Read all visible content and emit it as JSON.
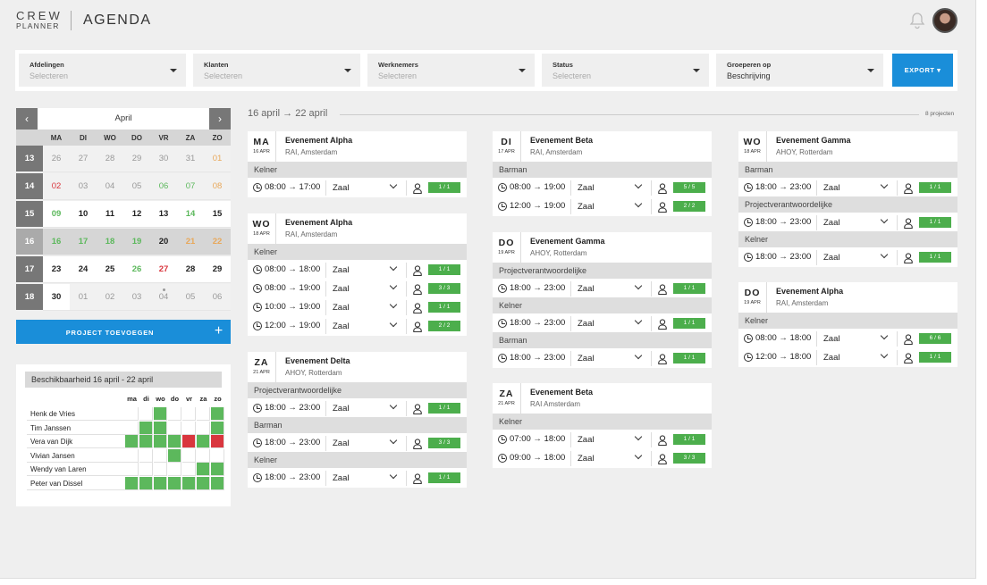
{
  "header": {
    "logo_top": "CREW",
    "logo_bottom": "PLANNER",
    "title": "AGENDA"
  },
  "filters": [
    {
      "label": "Afdelingen",
      "value": "Selecteren",
      "placeholder": true
    },
    {
      "label": "Klanten",
      "value": "Selecteren",
      "placeholder": true
    },
    {
      "label": "Werknemers",
      "value": "Selecteren",
      "placeholder": true
    },
    {
      "label": "Status",
      "value": "Selecteren",
      "placeholder": true
    },
    {
      "label": "Groeperen op",
      "value": "Beschrijving",
      "placeholder": false
    }
  ],
  "export_label": "EXPORT ▾",
  "calendar": {
    "month": "April",
    "prev": "‹",
    "next": "›",
    "weekdays": [
      "MA",
      "DI",
      "WO",
      "DO",
      "VR",
      "ZA",
      "ZO"
    ],
    "weeks": [
      {
        "num": "13",
        "days": [
          "26",
          "27",
          "28",
          "29",
          "30",
          "31",
          "01"
        ]
      },
      {
        "num": "14",
        "days": [
          "02",
          "03",
          "04",
          "05",
          "06",
          "07",
          "08"
        ]
      },
      {
        "num": "15",
        "days": [
          "09",
          "10",
          "11",
          "12",
          "13",
          "14",
          "15"
        ]
      },
      {
        "num": "16",
        "days": [
          "16",
          "17",
          "18",
          "19",
          "20",
          "21",
          "22"
        ]
      },
      {
        "num": "17",
        "days": [
          "23",
          "24",
          "25",
          "26",
          "27",
          "28",
          "29"
        ]
      },
      {
        "num": "18",
        "days": [
          "30",
          "01",
          "02",
          "03",
          "04",
          "05",
          "06"
        ]
      }
    ]
  },
  "add_project_label": "PROJECT TOEVOEGEN",
  "add_project_icon": "+",
  "availability": {
    "title": "Beschikbaarheid 16 april - 22 april",
    "days": [
      "ma",
      "di",
      "wo",
      "do",
      "vr",
      "za",
      "zo"
    ],
    "colors": {
      "green": "#5cb85c",
      "red": "#d9363e"
    },
    "people": [
      {
        "name": "Henk de Vries",
        "cells": [
          "",
          "",
          "g",
          "",
          "",
          "",
          "g"
        ]
      },
      {
        "name": "Tim Janssen",
        "cells": [
          "",
          "g",
          "g",
          "",
          "",
          "",
          "g"
        ]
      },
      {
        "name": "Vera van Dijk",
        "cells": [
          "g",
          "g",
          "g",
          "g",
          "r",
          "g",
          "r"
        ]
      },
      {
        "name": "Vivian Jansen",
        "cells": [
          "",
          "",
          "",
          "g",
          "",
          "",
          ""
        ]
      },
      {
        "name": "Wendy van Laren",
        "cells": [
          "",
          "",
          "",
          "",
          "",
          "g",
          "g"
        ]
      },
      {
        "name": "Peter van Dissel",
        "cells": [
          "g",
          "g",
          "g",
          "g",
          "g",
          "g",
          "g"
        ]
      }
    ]
  },
  "range": {
    "from": "16 april",
    "arrow": "→",
    "to": "22 april",
    "count": "8 projecten"
  },
  "cards": [
    {
      "day": "MA",
      "date": "16 APR",
      "name": "Evenement Alpha",
      "loc": "RAI, Amsterdam",
      "roles": [
        {
          "role": "Kelner",
          "shifts": [
            {
              "time": "08:00 → 17:00",
              "loc": "Zaal",
              "count": "1 / 1"
            }
          ]
        }
      ]
    },
    {
      "day": "WO",
      "date": "18 APR",
      "name": "Evenement Alpha",
      "loc": "RAI, Amsterdam",
      "roles": [
        {
          "role": "Kelner",
          "shifts": [
            {
              "time": "08:00 → 18:00",
              "loc": "Zaal",
              "count": "1 / 1"
            },
            {
              "time": "08:00 → 19:00",
              "loc": "Zaal",
              "count": "3 / 3"
            },
            {
              "time": "10:00 → 19:00",
              "loc": "Zaal",
              "count": "1 / 1"
            },
            {
              "time": "12:00 → 19:00",
              "loc": "Zaal",
              "count": "2 / 2"
            }
          ]
        }
      ]
    },
    {
      "day": "ZA",
      "date": "21 APR",
      "name": "Evenement Delta",
      "loc": "AHOY, Rotterdam",
      "roles": [
        {
          "role": "Projectverantwoordelijke",
          "shifts": [
            {
              "time": "18:00 → 23:00",
              "loc": "Zaal",
              "count": "1 / 1"
            }
          ]
        },
        {
          "role": "Barman",
          "shifts": [
            {
              "time": "18:00 → 23:00",
              "loc": "Zaal",
              "count": "3 / 3"
            }
          ]
        },
        {
          "role": "Kelner",
          "shifts": [
            {
              "time": "18:00 → 23:00",
              "loc": "Zaal",
              "count": "1 / 1"
            }
          ]
        }
      ]
    },
    {
      "day": "DI",
      "date": "17 APR",
      "name": "Evenement Beta",
      "loc": "RAI, Amsterdam",
      "roles": [
        {
          "role": "Barman",
          "shifts": [
            {
              "time": "08:00 → 19:00",
              "loc": "Zaal",
              "count": "5 / 5"
            },
            {
              "time": "12:00 → 19:00",
              "loc": "Zaal",
              "count": "2 / 2"
            }
          ]
        }
      ]
    },
    {
      "day": "DO",
      "date": "19 APR",
      "name": "Evenement Gamma",
      "loc": "AHOY, Rotterdam",
      "roles": [
        {
          "role": "Projectverantwoordelijke",
          "shifts": [
            {
              "time": "18:00 → 23:00",
              "loc": "Zaal",
              "count": "1 / 1"
            }
          ]
        },
        {
          "role": "Kelner",
          "shifts": [
            {
              "time": "18:00 → 23:00",
              "loc": "Zaal",
              "count": "1 / 1"
            }
          ]
        },
        {
          "role": "Barman",
          "shifts": [
            {
              "time": "18:00 → 23:00",
              "loc": "Zaal",
              "count": "1 / 1"
            }
          ]
        }
      ]
    },
    {
      "day": "ZA",
      "date": "21 APR",
      "name": "Evenement Beta",
      "loc": "RAI Amsterdam",
      "roles": [
        {
          "role": "Kelner",
          "shifts": [
            {
              "time": "07:00 → 18:00",
              "loc": "Zaal",
              "count": "1 / 1"
            },
            {
              "time": "09:00 → 18:00",
              "loc": "Zaal",
              "count": "3 / 3"
            }
          ]
        }
      ]
    },
    {
      "day": "WO",
      "date": "18 APR",
      "name": "Evenement Gamma",
      "loc": "AHOY, Rotterdam",
      "roles": [
        {
          "role": "Barman",
          "shifts": [
            {
              "time": "18:00 → 23:00",
              "loc": "Zaal",
              "count": "1 / 1"
            }
          ]
        },
        {
          "role": "Projectverantwoordelijke",
          "shifts": [
            {
              "time": "18:00 → 23:00",
              "loc": "Zaal",
              "count": "1 / 1"
            }
          ]
        },
        {
          "role": "Kelner",
          "shifts": [
            {
              "time": "18:00 → 23:00",
              "loc": "Zaal",
              "count": "1 / 1"
            }
          ]
        }
      ]
    },
    {
      "day": "DO",
      "date": "19 APR",
      "name": "Evenement Alpha",
      "loc": "RAI, Amsterdam",
      "roles": [
        {
          "role": "Kelner",
          "shifts": [
            {
              "time": "08:00 → 18:00",
              "loc": "Zaal",
              "count": "6 / 6"
            },
            {
              "time": "12:00 → 18:00",
              "loc": "Zaal",
              "count": "1 / 1"
            }
          ]
        }
      ]
    }
  ]
}
